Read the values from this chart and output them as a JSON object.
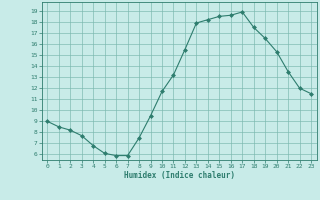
{
  "title": "",
  "xlabel": "Humidex (Indice chaleur)",
  "ylabel": "",
  "x": [
    0,
    1,
    2,
    3,
    4,
    5,
    6,
    7,
    8,
    9,
    10,
    11,
    12,
    13,
    14,
    15,
    16,
    17,
    18,
    19,
    20,
    21,
    22,
    23
  ],
  "y": [
    9.0,
    8.5,
    8.2,
    7.7,
    6.8,
    6.1,
    5.9,
    5.9,
    7.5,
    9.5,
    11.7,
    13.2,
    15.5,
    17.9,
    18.2,
    18.5,
    18.6,
    18.9,
    17.5,
    16.5,
    15.3,
    13.5,
    12.0,
    11.5
  ],
  "line_color": "#2e7d6e",
  "bg_color": "#c8ebe8",
  "grid_color": "#7ab8ae",
  "ylim_min": 5.5,
  "ylim_max": 19.8,
  "xlim_min": -0.5,
  "xlim_max": 23.5,
  "yticks": [
    6,
    7,
    8,
    9,
    10,
    11,
    12,
    13,
    14,
    15,
    16,
    17,
    18,
    19
  ],
  "xticks": [
    0,
    1,
    2,
    3,
    4,
    5,
    6,
    7,
    8,
    9,
    10,
    11,
    12,
    13,
    14,
    15,
    16,
    17,
    18,
    19,
    20,
    21,
    22,
    23
  ]
}
